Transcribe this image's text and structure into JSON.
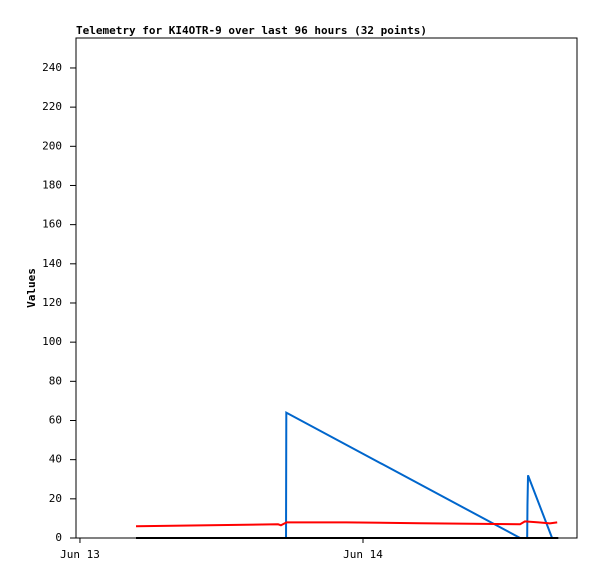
{
  "chart_data": {
    "type": "line",
    "title": "Telemetry for KI4OTR-9 over last 96 hours (32 points)",
    "y_label": "Values",
    "xlim": [
      -0.014,
      1.756
    ],
    "xticks": [
      {
        "value": 0,
        "label": "Jun 13"
      },
      {
        "value": 1,
        "label": "Jun 14"
      }
    ],
    "ylim": [
      0,
      255.3
    ],
    "yticks": [
      0,
      20,
      40,
      60,
      80,
      100,
      120,
      140,
      160,
      180,
      200,
      220,
      240
    ],
    "series": [
      {
        "color": "#0066cc",
        "x": [
          0.198,
          0.728,
          0.729,
          1.555,
          1.58,
          1.581,
          1.583,
          1.668
        ],
        "values": [
          0,
          0,
          64,
          0,
          0,
          17,
          32,
          0
        ]
      },
      {
        "color": "#ff0000",
        "x": [
          0.198,
          0.7,
          0.71,
          0.73,
          0.94,
          1.2,
          1.555,
          1.572,
          1.62,
          1.66,
          1.686
        ],
        "values": [
          6,
          7,
          6.5,
          8,
          8,
          7.5,
          7,
          8.5,
          8,
          7.5,
          8
        ]
      },
      {
        "color": "#000000",
        "x": [
          0.198,
          0.728,
          1.2,
          1.69
        ],
        "values": [
          0,
          0,
          0,
          0
        ]
      }
    ]
  }
}
